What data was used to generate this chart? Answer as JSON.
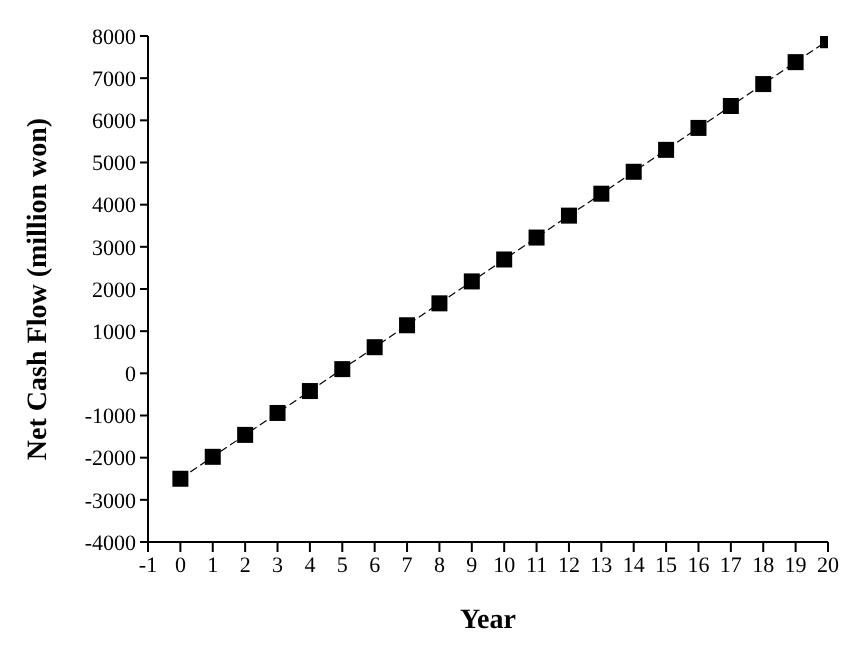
{
  "chart_data": {
    "type": "line",
    "xlabel": "Year",
    "ylabel": "Net Cash Flow (million won)",
    "x": [
      0,
      1,
      2,
      3,
      4,
      5,
      6,
      7,
      8,
      9,
      10,
      11,
      12,
      13,
      14,
      15,
      16,
      17,
      18,
      19,
      20
    ],
    "series": [
      {
        "color": "#000000",
        "values": [
          -2500,
          -1980,
          -1460,
          -940,
          -420,
          100,
          620,
          1140,
          1660,
          2180,
          2700,
          3220,
          3740,
          4260,
          4780,
          5300,
          5820,
          6340,
          6860,
          7380,
          7900
        ]
      }
    ],
    "xlim": [
      -1,
      20
    ],
    "xticks": [
      -1,
      0,
      1,
      2,
      3,
      4,
      5,
      6,
      7,
      8,
      9,
      10,
      11,
      12,
      13,
      14,
      15,
      16,
      17,
      18,
      19,
      20
    ],
    "ylim": [
      -4000,
      8000
    ],
    "yticks": [
      -4000,
      -3000,
      -2000,
      -1000,
      0,
      1000,
      2000,
      3000,
      4000,
      5000,
      6000,
      7000,
      8000
    ],
    "grid": false,
    "legend": false,
    "marker": "square",
    "line_style": "dashed"
  }
}
